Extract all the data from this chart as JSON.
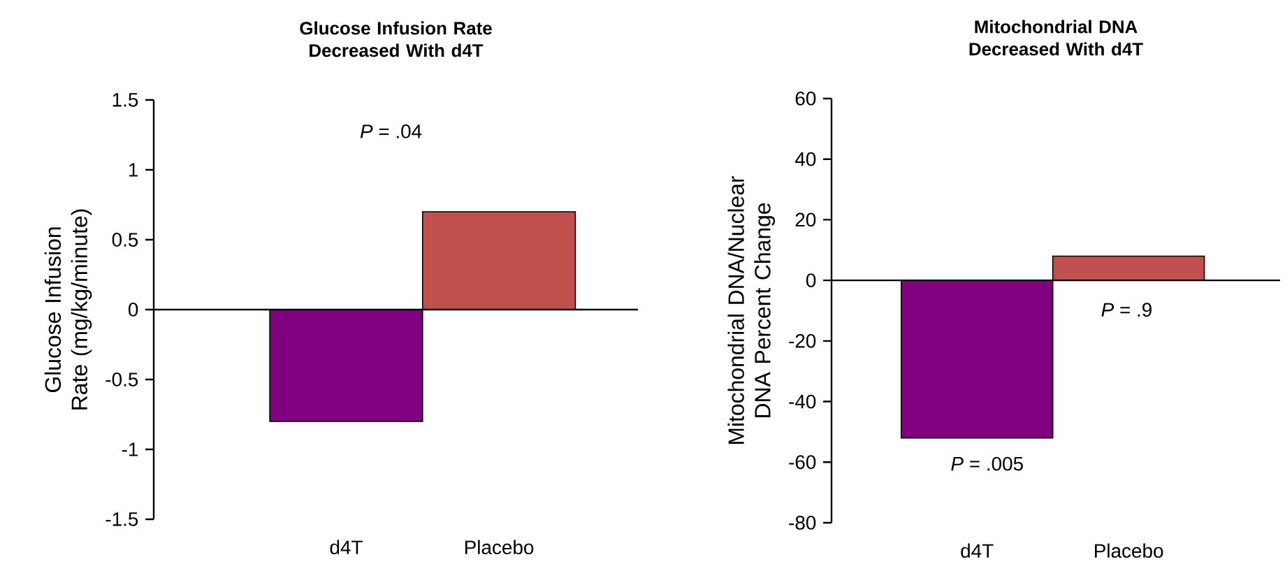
{
  "chart_data": [
    {
      "type": "bar",
      "title": "Glucose Infusion Rate Decreased With d4T",
      "categories": [
        "d4T",
        "Placebo"
      ],
      "values": [
        -0.8,
        0.7
      ],
      "colors": [
        "#800080",
        "#c0504d"
      ],
      "ylabel": "Glucose Infusion Rate (mg/kg/minute)",
      "ylim": [
        -1.5,
        1.5
      ],
      "yticks": [
        -1.5,
        -1,
        -0.5,
        0,
        0.5,
        1,
        1.5
      ],
      "annotations": [
        "*P* = .04"
      ]
    },
    {
      "type": "bar",
      "title": "Mitochondrial DNA Decreased With d4T",
      "categories": [
        "d4T",
        "Placebo"
      ],
      "values": [
        -52,
        8
      ],
      "colors": [
        "#800080",
        "#c0504d"
      ],
      "ylabel": "Mitochondrial DNA/Nuclear DNA Percent Change",
      "ylim": [
        -80,
        60
      ],
      "yticks": [
        -80,
        -60,
        -40,
        -20,
        0,
        20,
        40,
        60
      ],
      "annotations": [
        "*P* = .005",
        "*P* = .9"
      ]
    }
  ]
}
